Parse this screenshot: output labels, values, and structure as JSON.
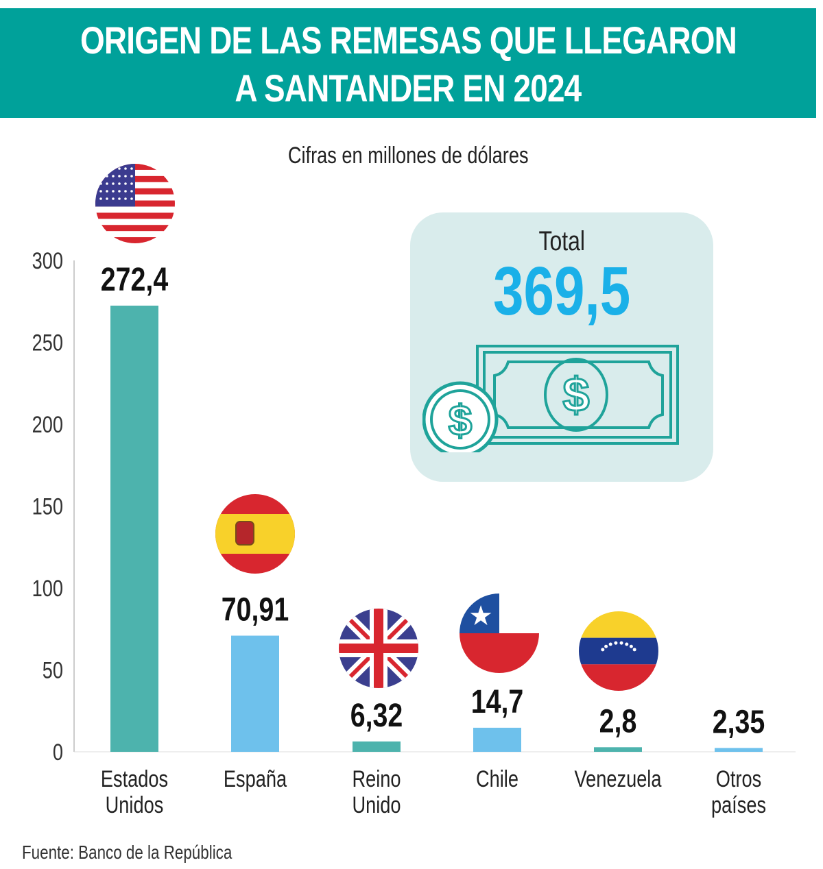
{
  "title_lines": [
    "ORIGEN DE LAS REMESAS QUE LLEGARON",
    "A SANTANDER EN 2024"
  ],
  "subtitle": "Cifras en millones de dólares",
  "total": {
    "label": "Total",
    "value": "369,5"
  },
  "source": "Fuente: Banco de la República",
  "colors": {
    "header": "#00a19a",
    "bar_teal": "#4db3ad",
    "bar_blue": "#6ec1ec",
    "total_value": "#1ab0e8",
    "total_box": "#d9ecec"
  },
  "chart_data": {
    "type": "bar",
    "title": "ORIGEN DE LAS REMESAS QUE LLEGARON A SANTANDER EN 2024",
    "subtitle": "Cifras en millones de dólares",
    "categories": [
      [
        "Estados",
        "Unidos"
      ],
      [
        "España"
      ],
      [
        "Reino",
        "Unido"
      ],
      [
        "Chile"
      ],
      [
        "Venezuela"
      ],
      [
        "Otros",
        "países"
      ]
    ],
    "values": [
      272.4,
      70.91,
      6.32,
      14.7,
      2.8,
      2.35
    ],
    "value_labels": [
      "272,4",
      "70,91",
      "6,32",
      "14,7",
      "2,8",
      "2,35"
    ],
    "flags": [
      "usa-flag",
      "spain-flag",
      "uk-flag",
      "chile-flag",
      "venezuela-flag",
      null
    ],
    "yticks": [
      0,
      50,
      100,
      150,
      200,
      250,
      300
    ],
    "ylim": [
      0,
      300
    ],
    "grid": false,
    "legend": "none"
  }
}
